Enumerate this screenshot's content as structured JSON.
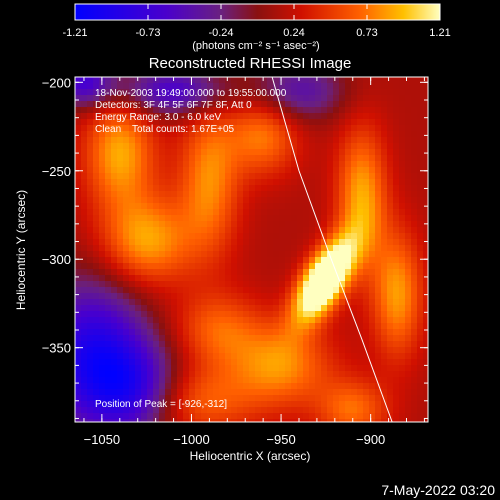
{
  "chart_data": {
    "type": "heatmap",
    "title": "Reconstructed RHESSI Image",
    "xlabel": "Heliocentric X (arcsec)",
    "ylabel": "Heliocentric Y (arcsec)",
    "xlim": [
      -1065,
      -868
    ],
    "ylim": [
      -392,
      -197
    ],
    "x_ticks": [
      -1050,
      -1000,
      -950,
      -900
    ],
    "y_ticks": [
      -200,
      -250,
      -300,
      -350
    ],
    "colorbar": {
      "ticks": [
        "-1.21",
        "-0.73",
        "-0.24",
        "0.24",
        "0.73",
        "1.21"
      ],
      "unit_label": "(photons cm⁻² s⁻¹ asec⁻²)",
      "range": [
        -1.21,
        1.21
      ]
    },
    "info": {
      "time_range": "18-Nov-2003 19:49:00.000 to 19:55:00.000",
      "detectors": "Detectors: 3F 4F 5F 6F 7F 8F, Att 0",
      "energy_range": "Energy Range: 3.0 - 6.0 keV",
      "clean": "Clean    Total counts: 1.67E+05"
    },
    "peak_label": "Position of Peak = [-926,-312]",
    "peak": {
      "x": -926,
      "y": -312,
      "value": 1.21
    },
    "limb_curve": [
      [
        -955,
        -197
      ],
      [
        -940,
        -250
      ],
      [
        -922,
        -300
      ],
      [
        -905,
        -345
      ],
      [
        -888,
        -392
      ]
    ],
    "blobs": [
      {
        "x": -926,
        "y": -312,
        "sx": 8,
        "sy": 18,
        "angle": -30,
        "amp": 1.7
      },
      {
        "x": -1040,
        "y": -240,
        "sx": 14,
        "sy": 22,
        "angle": 0,
        "amp": 0.75
      },
      {
        "x": -1025,
        "y": -290,
        "sx": 18,
        "sy": 18,
        "angle": 0,
        "amp": 0.75
      },
      {
        "x": -990,
        "y": -255,
        "sx": 12,
        "sy": 30,
        "angle": 0,
        "amp": 0.65
      },
      {
        "x": -960,
        "y": -230,
        "sx": 14,
        "sy": 16,
        "angle": 0,
        "amp": 0.6
      },
      {
        "x": -905,
        "y": -265,
        "sx": 10,
        "sy": 28,
        "angle": 0,
        "amp": 0.75
      },
      {
        "x": -885,
        "y": -320,
        "sx": 10,
        "sy": 25,
        "angle": 0,
        "amp": 0.7
      },
      {
        "x": -950,
        "y": -360,
        "sx": 20,
        "sy": 16,
        "angle": 0,
        "amp": 0.65
      },
      {
        "x": -985,
        "y": -340,
        "sx": 18,
        "sy": 15,
        "angle": 0,
        "amp": 0.5
      },
      {
        "x": -1000,
        "y": -380,
        "sx": 25,
        "sy": 14,
        "angle": 0,
        "amp": 0.55
      },
      {
        "x": -910,
        "y": -385,
        "sx": 14,
        "sy": 12,
        "angle": 0,
        "amp": 0.55
      },
      {
        "x": -1060,
        "y": -200,
        "sx": 12,
        "sy": 10,
        "angle": 0,
        "amp": -0.8
      },
      {
        "x": -1010,
        "y": -205,
        "sx": 22,
        "sy": 10,
        "angle": 0,
        "amp": -0.8
      },
      {
        "x": -1055,
        "y": -355,
        "sx": 22,
        "sy": 30,
        "angle": 0,
        "amp": -1.1
      },
      {
        "x": -1030,
        "y": -375,
        "sx": 18,
        "sy": 18,
        "angle": 0,
        "amp": -0.8
      },
      {
        "x": -940,
        "y": -205,
        "sx": 18,
        "sy": 12,
        "angle": 0,
        "amp": -0.6
      }
    ],
    "background": 0.15
  },
  "footer": {
    "timestamp": "7-May-2022 03:20"
  }
}
